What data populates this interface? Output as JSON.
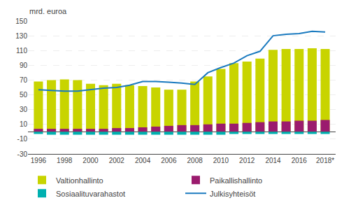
{
  "chart_data": {
    "type": "bar",
    "x": [
      1996,
      1997,
      1998,
      1999,
      2000,
      2001,
      2002,
      2003,
      2004,
      2005,
      2006,
      2007,
      2008,
      2009,
      2010,
      2011,
      2012,
      2013,
      2014,
      2015,
      2016,
      2017,
      2018
    ],
    "series": [
      {
        "name": "Valtionhallinto",
        "type": "bar",
        "color": "#c8d400",
        "values": [
          68,
          70,
          71,
          70,
          65,
          63,
          65,
          63,
          62,
          60,
          57,
          57,
          68,
          75,
          85,
          93,
          95,
          99,
          111,
          112,
          112,
          113,
          112
        ]
      },
      {
        "name": "Paikallishallinto",
        "type": "bar",
        "color": "#9b1b6e",
        "values": [
          4,
          4,
          4,
          4,
          4,
          4,
          5,
          5,
          6,
          7,
          8,
          9,
          9,
          10,
          11,
          11,
          12,
          13,
          14,
          14,
          15,
          15,
          16
        ]
      },
      {
        "name": "Sosiaalituvarahastot",
        "type": "bar",
        "color": "#00b0b0",
        "values": [
          -3,
          -4,
          -4,
          -4,
          -4,
          -4,
          -4,
          -4,
          -4,
          -4,
          -4,
          -4,
          -4,
          -4,
          -4,
          -3,
          -3,
          -3,
          -3,
          -3,
          -3,
          -3,
          -3
        ]
      },
      {
        "name": "Julkisyhteisöt",
        "type": "line",
        "color": "#1a7abf",
        "values": [
          57,
          56,
          55,
          55,
          57,
          59,
          60,
          63,
          68,
          68,
          67,
          66,
          64,
          80,
          87,
          93,
          103,
          109,
          130,
          132,
          133,
          136,
          135
        ]
      }
    ],
    "xlim": [
      1995.2,
      2018.8
    ],
    "xticks": [
      1996,
      1998,
      2000,
      2002,
      2004,
      2006,
      2008,
      2010,
      2012,
      2014,
      2016,
      {
        "value": 2018,
        "label": "2018*"
      }
    ],
    "ylim": [
      -30,
      150
    ],
    "yticks": [
      -30,
      -10,
      10,
      30,
      50,
      70,
      90,
      110,
      130,
      150
    ],
    "ylabel": "mrd. euroa",
    "grid": true,
    "legend": "bottom"
  }
}
